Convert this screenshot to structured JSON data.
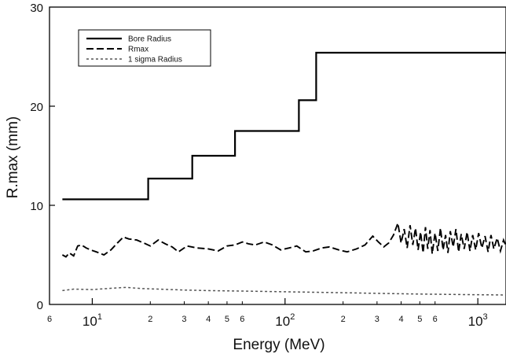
{
  "chart_data": {
    "type": "line",
    "xlabel": "Energy (MeV)",
    "ylabel": "R.max (mm)",
    "xscale": "log",
    "xlim": [
      6,
      1400
    ],
    "ylim": [
      0,
      30
    ],
    "grid": false,
    "legend_position": "top-left",
    "x_major_ticks": [
      {
        "value": 10,
        "base": "10",
        "exp": "1"
      },
      {
        "value": 100,
        "base": "10",
        "exp": "2"
      },
      {
        "value": 1000,
        "base": "10",
        "exp": "3"
      }
    ],
    "x_minor_ticks": [
      {
        "value": 6,
        "label": "6"
      },
      {
        "value": 20,
        "label": "2"
      },
      {
        "value": 30,
        "label": "3"
      },
      {
        "value": 40,
        "label": "4"
      },
      {
        "value": 50,
        "label": "5"
      },
      {
        "value": 60,
        "label": "6"
      },
      {
        "value": 200,
        "label": "2"
      },
      {
        "value": 300,
        "label": "3"
      },
      {
        "value": 400,
        "label": "4"
      },
      {
        "value": 500,
        "label": "5"
      },
      {
        "value": 600,
        "label": "6"
      }
    ],
    "y_ticks": [
      {
        "value": 0,
        "label": "0"
      },
      {
        "value": 10,
        "label": "10"
      },
      {
        "value": 20,
        "label": "20"
      },
      {
        "value": 30,
        "label": "30"
      }
    ],
    "series": [
      {
        "name": "Bore Radius",
        "style": "solid",
        "color": "#000000",
        "points": [
          [
            7,
            10.6
          ],
          [
            19.5,
            10.6
          ],
          [
            19.5,
            12.7
          ],
          [
            33,
            12.7
          ],
          [
            33,
            15.0
          ],
          [
            55,
            15.0
          ],
          [
            55,
            17.5
          ],
          [
            118,
            17.5
          ],
          [
            118,
            20.6
          ],
          [
            145,
            20.6
          ],
          [
            145,
            25.4
          ],
          [
            1400,
            25.4
          ]
        ]
      },
      {
        "name": "Rmax",
        "style": "dashed",
        "color": "#000000",
        "points": [
          [
            7,
            5.0
          ],
          [
            7.3,
            4.8
          ],
          [
            7.6,
            5.2
          ],
          [
            8,
            4.9
          ],
          [
            8.4,
            5.9
          ],
          [
            8.8,
            6.0
          ],
          [
            9.3,
            5.7
          ],
          [
            9.8,
            5.5
          ],
          [
            10.5,
            5.3
          ],
          [
            11.5,
            5.0
          ],
          [
            12.5,
            5.5
          ],
          [
            13.5,
            6.2
          ],
          [
            14.5,
            6.8
          ],
          [
            15.5,
            6.6
          ],
          [
            17,
            6.5
          ],
          [
            18.5,
            6.2
          ],
          [
            20,
            5.9
          ],
          [
            22,
            6.5
          ],
          [
            24,
            6.1
          ],
          [
            26,
            5.8
          ],
          [
            28,
            5.3
          ],
          [
            31,
            5.9
          ],
          [
            35,
            5.7
          ],
          [
            40,
            5.6
          ],
          [
            45,
            5.4
          ],
          [
            50,
            5.9
          ],
          [
            55,
            6.0
          ],
          [
            60,
            6.3
          ],
          [
            65,
            6.1
          ],
          [
            70,
            6.0
          ],
          [
            78,
            6.3
          ],
          [
            86,
            6.0
          ],
          [
            95,
            5.5
          ],
          [
            105,
            5.7
          ],
          [
            115,
            5.9
          ],
          [
            128,
            5.3
          ],
          [
            140,
            5.4
          ],
          [
            155,
            5.7
          ],
          [
            170,
            5.8
          ],
          [
            190,
            5.5
          ],
          [
            210,
            5.3
          ],
          [
            235,
            5.6
          ],
          [
            260,
            6.0
          ],
          [
            285,
            6.9
          ],
          [
            305,
            6.3
          ],
          [
            325,
            5.8
          ],
          [
            345,
            6.2
          ],
          [
            365,
            7.0
          ],
          [
            385,
            8.2
          ],
          [
            400,
            6.2
          ],
          [
            415,
            7.6
          ],
          [
            430,
            5.7
          ],
          [
            445,
            8.0
          ],
          [
            460,
            6.0
          ],
          [
            475,
            7.7
          ],
          [
            490,
            5.5
          ],
          [
            505,
            7.3
          ],
          [
            520,
            5.2
          ],
          [
            535,
            7.8
          ],
          [
            550,
            5.6
          ],
          [
            565,
            7.5
          ],
          [
            580,
            5.1
          ],
          [
            600,
            7.2
          ],
          [
            620,
            5.4
          ],
          [
            640,
            7.7
          ],
          [
            660,
            5.5
          ],
          [
            680,
            7.0
          ],
          [
            700,
            5.2
          ],
          [
            720,
            7.4
          ],
          [
            745,
            5.8
          ],
          [
            770,
            7.6
          ],
          [
            795,
            5.3
          ],
          [
            820,
            7.1
          ],
          [
            850,
            5.6
          ],
          [
            880,
            7.3
          ],
          [
            910,
            5.4
          ],
          [
            940,
            7.0
          ],
          [
            975,
            5.5
          ],
          [
            1010,
            7.2
          ],
          [
            1050,
            5.7
          ],
          [
            1090,
            6.9
          ],
          [
            1130,
            5.3
          ],
          [
            1170,
            7.0
          ],
          [
            1210,
            5.6
          ],
          [
            1260,
            6.7
          ],
          [
            1310,
            5.4
          ],
          [
            1360,
            6.5
          ],
          [
            1400,
            5.9
          ]
        ]
      },
      {
        "name": "1 sigma Radius",
        "style": "dotted",
        "color": "#555555",
        "points": [
          [
            7,
            1.4
          ],
          [
            8,
            1.55
          ],
          [
            10,
            1.5
          ],
          [
            13,
            1.65
          ],
          [
            15,
            1.72
          ],
          [
            18,
            1.6
          ],
          [
            22,
            1.55
          ],
          [
            30,
            1.45
          ],
          [
            40,
            1.4
          ],
          [
            60,
            1.35
          ],
          [
            100,
            1.28
          ],
          [
            150,
            1.22
          ],
          [
            200,
            1.18
          ],
          [
            300,
            1.12
          ],
          [
            500,
            1.05
          ],
          [
            800,
            1.0
          ],
          [
            1400,
            0.95
          ]
        ]
      }
    ]
  }
}
